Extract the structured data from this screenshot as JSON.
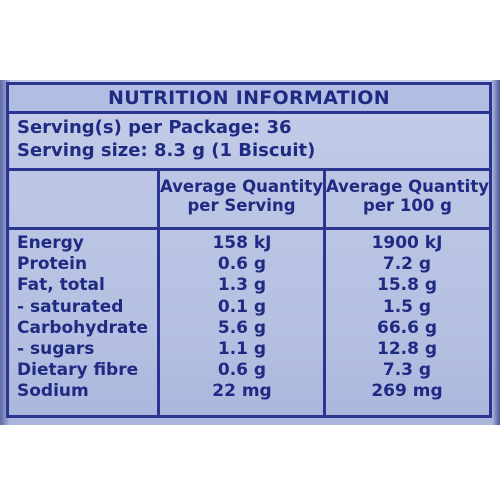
{
  "panel": {
    "title": "NUTRITION INFORMATION",
    "servings_per_package": "Serving(s) per Package: 36",
    "serving_size": "Serving size: 8.3 g (1 Biscuit)",
    "col_headers": {
      "per_serving_line1": "Average Quantity",
      "per_serving_line2": "per Serving",
      "per_100g_line1": "Average Quantity",
      "per_100g_line2": "per 100 g"
    },
    "rows": [
      {
        "label": "Energy",
        "per_serving": "158 kJ",
        "per_100g": "1900 kJ"
      },
      {
        "label": "Protein",
        "per_serving": "0.6 g",
        "per_100g": "7.2 g"
      },
      {
        "label": "Fat, total",
        "per_serving": "1.3 g",
        "per_100g": "15.8 g"
      },
      {
        "label": " - saturated",
        "per_serving": "0.1 g",
        "per_100g": "1.5 g"
      },
      {
        "label": "Carbohydrate",
        "per_serving": "5.6 g",
        "per_100g": "66.6 g"
      },
      {
        "label": " - sugars",
        "per_serving": "1.1 g",
        "per_100g": "12.8 g"
      },
      {
        "label": "Dietary fibre",
        "per_serving": "0.6 g",
        "per_100g": "7.3 g"
      },
      {
        "label": "Sodium",
        "per_serving": "22 mg",
        "per_100g": "269 mg"
      }
    ]
  }
}
